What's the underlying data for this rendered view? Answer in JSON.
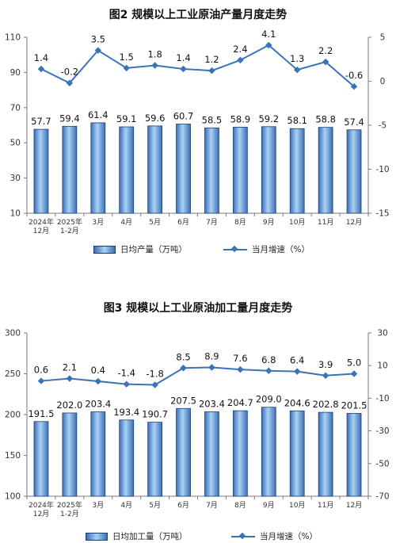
{
  "colors": {
    "bar_dark": "#3b6fb6",
    "bar_light": "#a9d2f4",
    "bar_stroke": "#1f3f73",
    "line": "#3b73b9"
  },
  "chart_data": [
    {
      "type": "bar",
      "title": "图2  规模以上工业原油产量月度走势",
      "categories": [
        "2024年\n12月",
        "2025年\n1-2月",
        "3月",
        "4月",
        "5月",
        "6月",
        "7月",
        "8月",
        "9月",
        "10月",
        "11月",
        "12月"
      ],
      "ylim": [
        10,
        110
      ],
      "yticks": [
        10,
        30,
        50,
        70,
        90,
        110
      ],
      "y2lim": [
        -15,
        5
      ],
      "y2ticks": [
        5,
        0,
        -5,
        -10,
        -15
      ],
      "series": [
        {
          "name": "日均产量（万吨）",
          "type": "bar",
          "axis": "left",
          "values": [
            57.7,
            59.4,
            61.4,
            59.1,
            59.6,
            60.7,
            58.5,
            58.9,
            59.2,
            58.1,
            58.8,
            57.4
          ]
        },
        {
          "name": "当月增速（%）",
          "type": "line",
          "axis": "right",
          "values": [
            1.4,
            -0.2,
            3.5,
            1.5,
            1.8,
            1.4,
            1.2,
            2.4,
            4.1,
            1.3,
            2.2,
            -0.6
          ]
        }
      ],
      "legend": "bottom",
      "grid": false
    },
    {
      "type": "bar",
      "title": "图3  规模以上工业原油加工量月度走势",
      "categories": [
        "2024年\n12月",
        "2025年\n1-2月",
        "3月",
        "4月",
        "5月",
        "6月",
        "7月",
        "8月",
        "9月",
        "10月",
        "11月",
        "12月"
      ],
      "ylim": [
        100,
        300
      ],
      "yticks": [
        100,
        150,
        200,
        250,
        300
      ],
      "y2lim": [
        -70,
        30
      ],
      "y2ticks": [
        30,
        10,
        -10,
        -30,
        -50,
        -70
      ],
      "series": [
        {
          "name": "日均加工量（万吨）",
          "type": "bar",
          "axis": "left",
          "values": [
            191.5,
            202.0,
            203.4,
            193.4,
            190.7,
            207.5,
            203.4,
            204.7,
            209.0,
            204.6,
            202.8,
            201.5
          ]
        },
        {
          "name": "当月增速（%）",
          "type": "line",
          "axis": "right",
          "values": [
            0.6,
            2.1,
            0.4,
            -1.4,
            -1.8,
            8.5,
            8.9,
            7.6,
            6.8,
            6.4,
            3.9,
            5.0
          ]
        }
      ],
      "legend": "bottom",
      "grid": false
    }
  ]
}
